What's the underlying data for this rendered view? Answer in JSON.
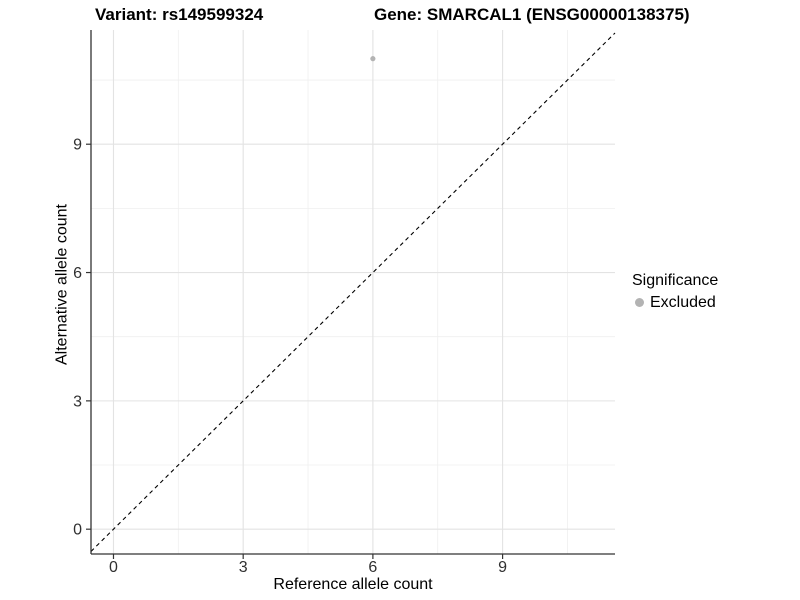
{
  "chart_data": {
    "type": "scatter",
    "title_left": "Variant: rs149599324",
    "title_right": "Gene: SMARCAL1 (ENSG00000138375)",
    "xlabel": "Reference allele count",
    "ylabel": "Alternative allele count",
    "xlim": [
      -0.52,
      11.6
    ],
    "ylim": [
      -0.58,
      11.67
    ],
    "x_major_ticks": [
      0,
      3,
      6,
      9
    ],
    "y_major_ticks": [
      0,
      3,
      6,
      9
    ],
    "x_minor_ticks": [
      1.5,
      4.5,
      7.5,
      10.5
    ],
    "y_minor_ticks": [
      1.5,
      4.5,
      7.5,
      10.5
    ],
    "grid": true,
    "series": [
      {
        "name": "Excluded",
        "color": "#b3b3b3",
        "points": [
          {
            "x": 6,
            "y": 11
          }
        ]
      }
    ],
    "reference_line": {
      "type": "identity",
      "equation": "y = x",
      "style": "dashed",
      "color": "#000000"
    },
    "legend": {
      "title": "Significance",
      "position": "right",
      "items": [
        {
          "label": "Excluded",
          "color": "#b3b3b3",
          "marker": "circle"
        }
      ]
    },
    "styles": {
      "background_color": "#ffffff",
      "axis_color": "#333333",
      "tick_label_color": "#303030",
      "grid_major_color": "#e3e3e3",
      "grid_minor_color": "#efefef"
    }
  }
}
